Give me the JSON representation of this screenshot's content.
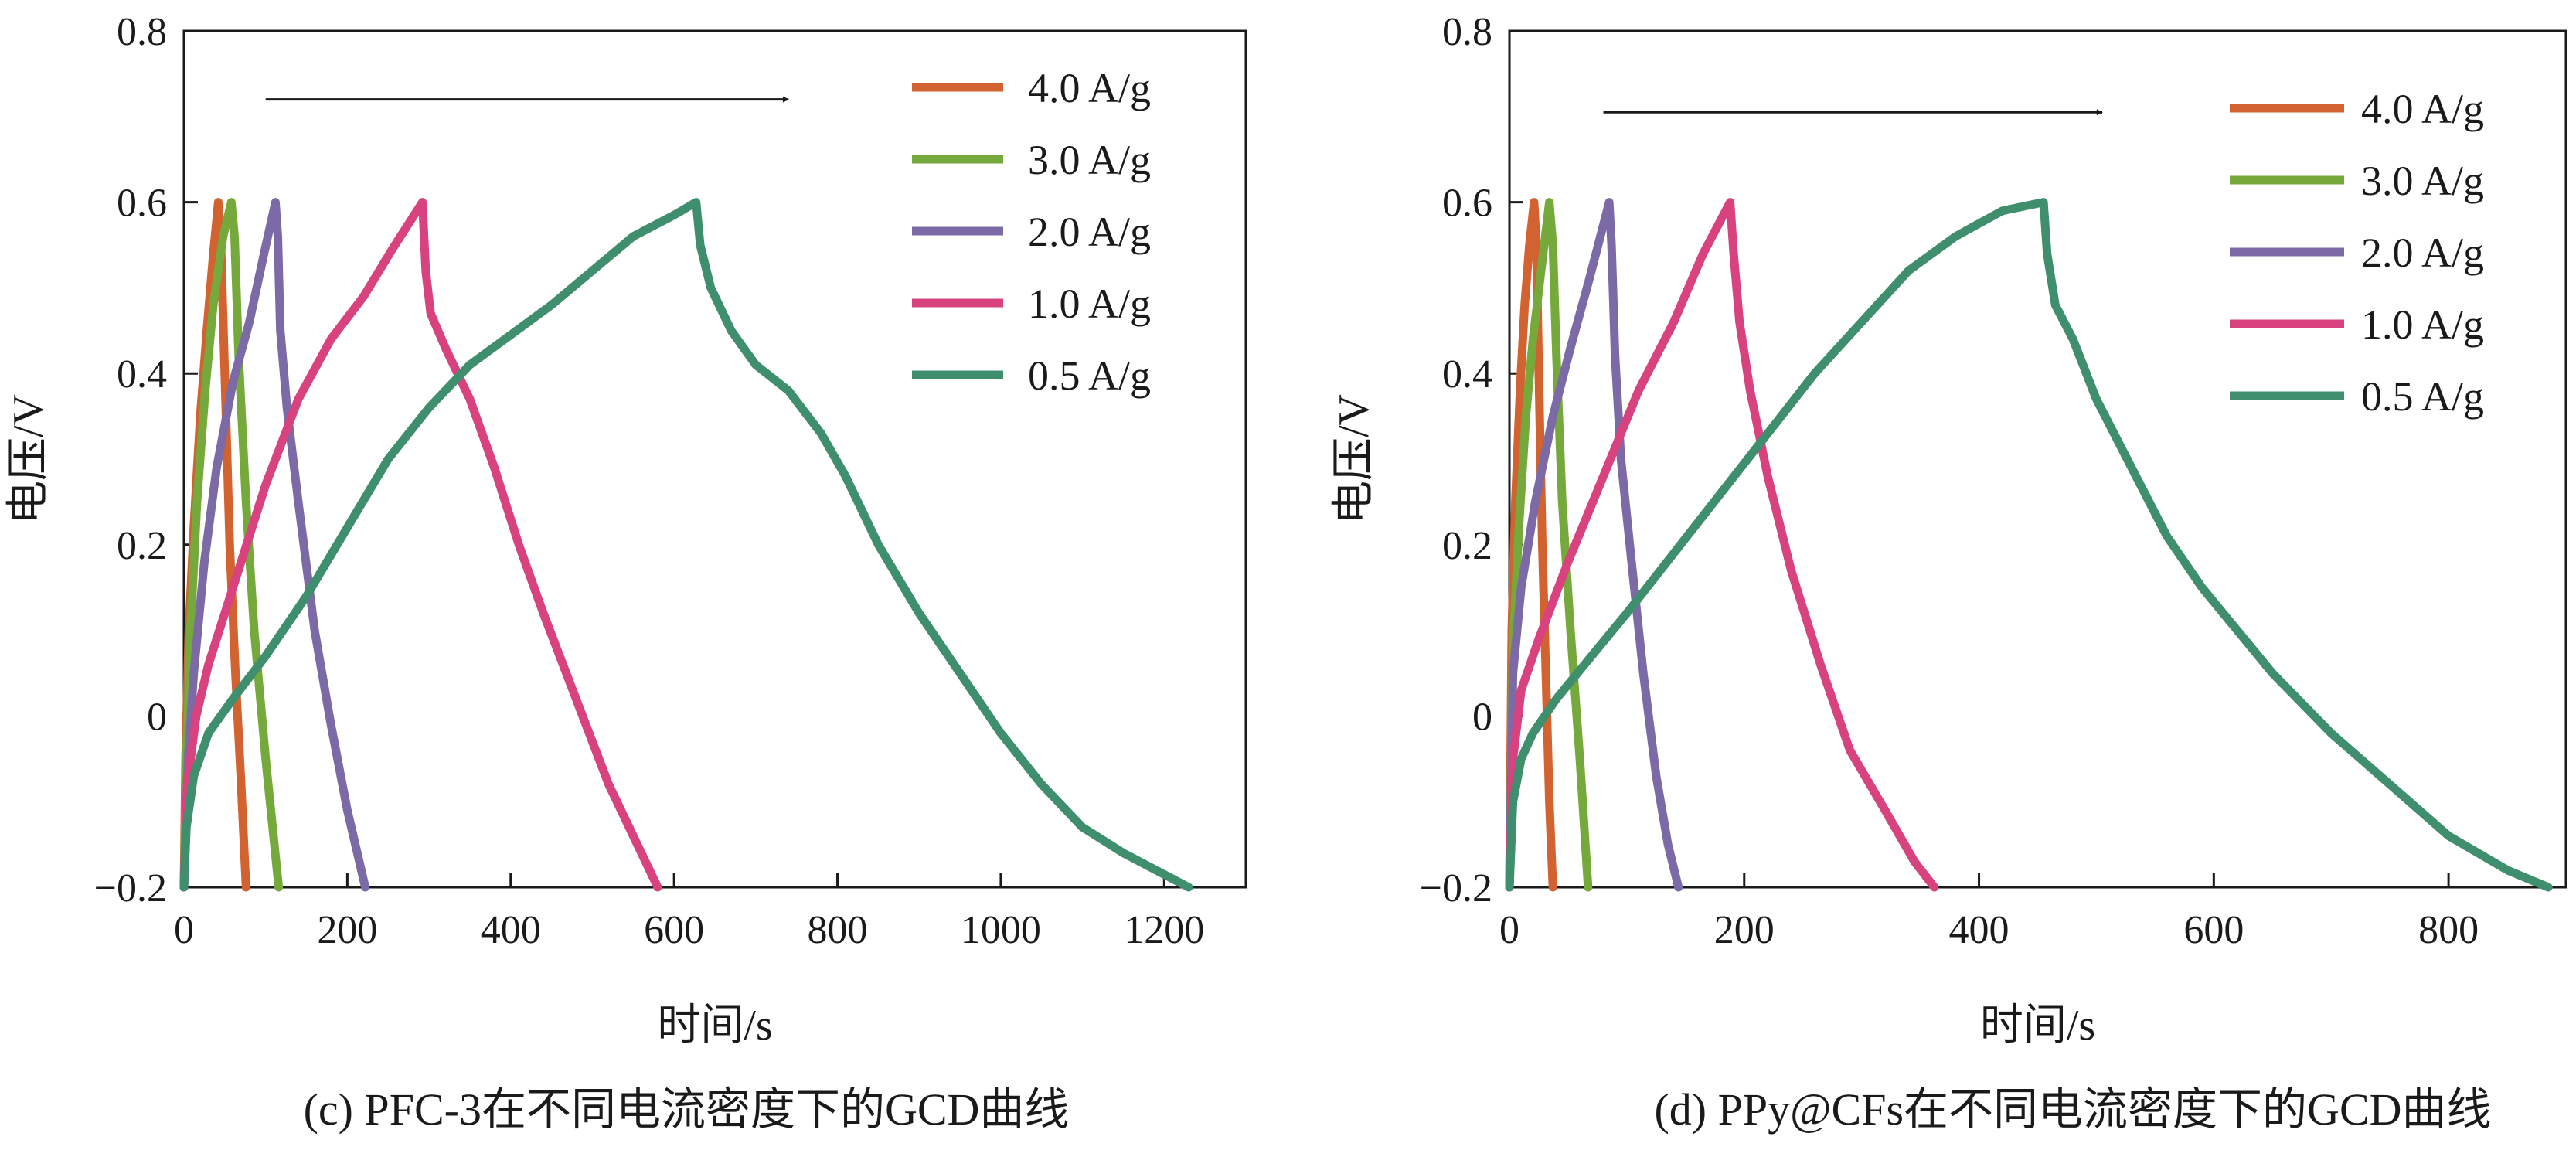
{
  "colors": {
    "4.0 A/g": "#d2622f",
    "3.0 A/g": "#76a93b",
    "2.0 A/g": "#7c6aa6",
    "1.0 A/g": "#d7427f",
    "0.5 A/g": "#3f8e6d"
  },
  "chart_data": [
    {
      "type": "line",
      "caption": "(c) PFC-3在不同电流密度下的GCD曲线",
      "xlabel": "时间/s",
      "ylabel": "电压/V",
      "xlim": [
        0,
        1300
      ],
      "ylim": [
        -0.2,
        0.8
      ],
      "xticks": [
        0,
        200,
        400,
        600,
        800,
        1000,
        1200
      ],
      "xtick_labels": [
        "0",
        "200",
        "400",
        "600",
        "800",
        "1000",
        "1200"
      ],
      "yticks": [
        -0.2,
        0,
        0.2,
        0.4,
        0.6,
        0.8
      ],
      "ytick_labels": [
        "−0.2",
        "0",
        "0.2",
        "0.4",
        "0.6",
        "0.8"
      ],
      "grid": false,
      "legend_position": "top-right",
      "arrow": {
        "from": [
          100,
          0.72
        ],
        "to": [
          740,
          0.72
        ]
      },
      "series": [
        {
          "name": "4.0 A/g",
          "points": [
            [
              0,
              -0.2
            ],
            [
              2,
              -0.05
            ],
            [
              6,
              0.1
            ],
            [
              12,
              0.22
            ],
            [
              20,
              0.35
            ],
            [
              28,
              0.45
            ],
            [
              36,
              0.54
            ],
            [
              42,
              0.6
            ],
            [
              45,
              0.56
            ],
            [
              50,
              0.4
            ],
            [
              56,
              0.2
            ],
            [
              63,
              0.05
            ],
            [
              70,
              -0.08
            ],
            [
              76,
              -0.2
            ]
          ]
        },
        {
          "name": "3.0 A/g",
          "points": [
            [
              0,
              -0.2
            ],
            [
              3,
              -0.05
            ],
            [
              8,
              0.1
            ],
            [
              16,
              0.25
            ],
            [
              26,
              0.38
            ],
            [
              36,
              0.48
            ],
            [
              48,
              0.56
            ],
            [
              58,
              0.6
            ],
            [
              62,
              0.56
            ],
            [
              67,
              0.42
            ],
            [
              76,
              0.25
            ],
            [
              86,
              0.1
            ],
            [
              100,
              -0.05
            ],
            [
              116,
              -0.2
            ]
          ]
        },
        {
          "name": "2.0 A/g",
          "points": [
            [
              0,
              -0.2
            ],
            [
              5,
              -0.05
            ],
            [
              12,
              0.05
            ],
            [
              25,
              0.18
            ],
            [
              40,
              0.29
            ],
            [
              60,
              0.39
            ],
            [
              80,
              0.46
            ],
            [
              98,
              0.54
            ],
            [
              112,
              0.6
            ],
            [
              115,
              0.56
            ],
            [
              118,
              0.45
            ],
            [
              126,
              0.36
            ],
            [
              140,
              0.25
            ],
            [
              160,
              0.1
            ],
            [
              180,
              -0.01
            ],
            [
              200,
              -0.11
            ],
            [
              222,
              -0.2
            ]
          ]
        },
        {
          "name": "1.0 A/g",
          "points": [
            [
              0,
              -0.2
            ],
            [
              4,
              -0.08
            ],
            [
              15,
              0
            ],
            [
              30,
              0.06
            ],
            [
              60,
              0.15
            ],
            [
              100,
              0.27
            ],
            [
              140,
              0.37
            ],
            [
              180,
              0.44
            ],
            [
              220,
              0.49
            ],
            [
              255,
              0.545
            ],
            [
              292,
              0.6
            ],
            [
              296,
              0.52
            ],
            [
              302,
              0.47
            ],
            [
              320,
              0.43
            ],
            [
              350,
              0.37
            ],
            [
              380,
              0.29
            ],
            [
              410,
              0.2
            ],
            [
              440,
              0.12
            ],
            [
              480,
              0.02
            ],
            [
              520,
              -0.08
            ],
            [
              555,
              -0.15
            ],
            [
              580,
              -0.2
            ]
          ]
        },
        {
          "name": "0.5 A/g",
          "points": [
            [
              0,
              -0.2
            ],
            [
              3,
              -0.13
            ],
            [
              12,
              -0.07
            ],
            [
              30,
              -0.02
            ],
            [
              60,
              0.02
            ],
            [
              100,
              0.07
            ],
            [
              150,
              0.14
            ],
            [
              200,
              0.22
            ],
            [
              250,
              0.3
            ],
            [
              300,
              0.36
            ],
            [
              350,
              0.41
            ],
            [
              400,
              0.445
            ],
            [
              450,
              0.48
            ],
            [
              500,
              0.52
            ],
            [
              550,
              0.56
            ],
            [
              600,
              0.585
            ],
            [
              627,
              0.6
            ],
            [
              632,
              0.55
            ],
            [
              645,
              0.5
            ],
            [
              670,
              0.45
            ],
            [
              700,
              0.41
            ],
            [
              740,
              0.38
            ],
            [
              780,
              0.33
            ],
            [
              810,
              0.28
            ],
            [
              850,
              0.2
            ],
            [
              900,
              0.12
            ],
            [
              950,
              0.05
            ],
            [
              1000,
              -0.02
            ],
            [
              1050,
              -0.08
            ],
            [
              1100,
              -0.13
            ],
            [
              1150,
              -0.16
            ],
            [
              1200,
              -0.185
            ],
            [
              1230,
              -0.2
            ]
          ]
        }
      ]
    },
    {
      "type": "line",
      "caption": "(d) PPy@CFs在不同电流密度下的GCD曲线",
      "xlabel": "时间/s",
      "ylabel": "电压/V",
      "xlim": [
        0,
        900
      ],
      "ylim": [
        -0.2,
        0.8
      ],
      "xticks": [
        0,
        200,
        400,
        600,
        800
      ],
      "xtick_labels": [
        "0",
        "200",
        "400",
        "600",
        "800"
      ],
      "yticks": [
        -0.2,
        0,
        0.2,
        0.4,
        0.6,
        0.8
      ],
      "ytick_labels": [
        "−0.2",
        "0",
        "0.2",
        "0.4",
        "0.6",
        "0.8"
      ],
      "grid": false,
      "legend_position": "top-right",
      "arrow": {
        "from": [
          80,
          0.705
        ],
        "to": [
          505,
          0.705
        ]
      },
      "series": [
        {
          "name": "4.0 A/g",
          "points": [
            [
              0,
              -0.2
            ],
            [
              2,
              0.1
            ],
            [
              5,
              0.25
            ],
            [
              9,
              0.38
            ],
            [
              13,
              0.48
            ],
            [
              17,
              0.55
            ],
            [
              21,
              0.6
            ],
            [
              23,
              0.55
            ],
            [
              25,
              0.4
            ],
            [
              28,
              0.2
            ],
            [
              31,
              0.05
            ],
            [
              34,
              -0.1
            ],
            [
              37,
              -0.2
            ]
          ]
        },
        {
          "name": "3.0 A/g",
          "points": [
            [
              0,
              -0.2
            ],
            [
              3,
              0.08
            ],
            [
              8,
              0.22
            ],
            [
              14,
              0.35
            ],
            [
              20,
              0.44
            ],
            [
              27,
              0.52
            ],
            [
              34,
              0.6
            ],
            [
              37,
              0.55
            ],
            [
              40,
              0.42
            ],
            [
              45,
              0.25
            ],
            [
              52,
              0.1
            ],
            [
              60,
              -0.05
            ],
            [
              67,
              -0.2
            ]
          ]
        },
        {
          "name": "2.0 A/g",
          "points": [
            [
              0,
              -0.2
            ],
            [
              3,
              0.05
            ],
            [
              10,
              0.15
            ],
            [
              22,
              0.25
            ],
            [
              37,
              0.35
            ],
            [
              52,
              0.43
            ],
            [
              68,
              0.51
            ],
            [
              85,
              0.6
            ],
            [
              87,
              0.55
            ],
            [
              90,
              0.42
            ],
            [
              95,
              0.3
            ],
            [
              104,
              0.18
            ],
            [
              114,
              0.05
            ],
            [
              125,
              -0.07
            ],
            [
              135,
              -0.15
            ],
            [
              144,
              -0.2
            ]
          ]
        },
        {
          "name": "1.0 A/g",
          "points": [
            [
              0,
              -0.2
            ],
            [
              3,
              -0.05
            ],
            [
              10,
              0.03
            ],
            [
              25,
              0.09
            ],
            [
              50,
              0.18
            ],
            [
              80,
              0.28
            ],
            [
              110,
              0.38
            ],
            [
              140,
              0.46
            ],
            [
              165,
              0.54
            ],
            [
              188,
              0.6
            ],
            [
              191,
              0.54
            ],
            [
              196,
              0.46
            ],
            [
              205,
              0.38
            ],
            [
              220,
              0.28
            ],
            [
              240,
              0.17
            ],
            [
              265,
              0.06
            ],
            [
              290,
              -0.04
            ],
            [
              320,
              -0.11
            ],
            [
              345,
              -0.17
            ],
            [
              362,
              -0.2
            ]
          ]
        },
        {
          "name": "0.5 A/g",
          "points": [
            [
              0,
              -0.2
            ],
            [
              3,
              -0.1
            ],
            [
              10,
              -0.05
            ],
            [
              20,
              -0.02
            ],
            [
              40,
              0.02
            ],
            [
              70,
              0.07
            ],
            [
              100,
              0.12
            ],
            [
              140,
              0.19
            ],
            [
              180,
              0.26
            ],
            [
              220,
              0.33
            ],
            [
              260,
              0.4
            ],
            [
              300,
              0.46
            ],
            [
              340,
              0.52
            ],
            [
              380,
              0.56
            ],
            [
              420,
              0.59
            ],
            [
              455,
              0.6
            ],
            [
              458,
              0.54
            ],
            [
              465,
              0.48
            ],
            [
              480,
              0.44
            ],
            [
              500,
              0.37
            ],
            [
              530,
              0.29
            ],
            [
              560,
              0.21
            ],
            [
              590,
              0.15
            ],
            [
              620,
              0.1
            ],
            [
              650,
              0.05
            ],
            [
              700,
              -0.02
            ],
            [
              750,
              -0.08
            ],
            [
              800,
              -0.14
            ],
            [
              850,
              -0.18
            ],
            [
              885,
              -0.2
            ]
          ]
        }
      ]
    }
  ]
}
